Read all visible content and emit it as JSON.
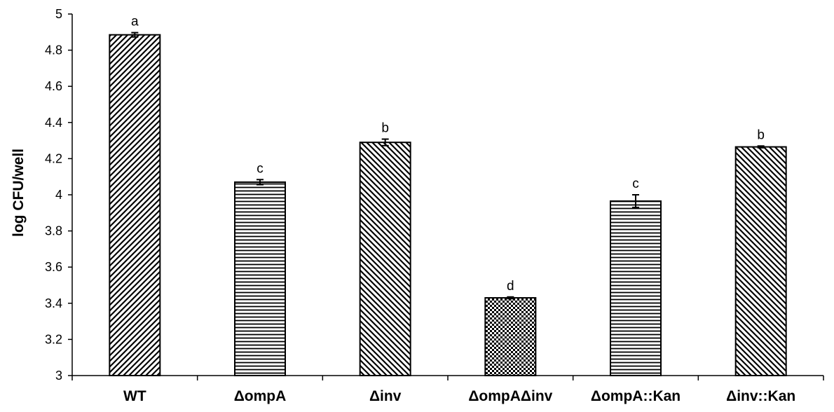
{
  "chart_data": {
    "type": "bar",
    "title": "",
    "xlabel": "",
    "ylabel": "log CFU/well",
    "ylim": [
      3,
      5
    ],
    "yticks": [
      "3",
      "3.2",
      "3.4",
      "3.6",
      "3.8",
      "4",
      "4.2",
      "4.4",
      "4.6",
      "4.8",
      "5"
    ],
    "grid": false,
    "legend": "none",
    "categories": [
      "WT",
      "ΔompA",
      "Δinv",
      "ΔompAΔinv",
      "ΔompA::Kan",
      "Δinv::Kan"
    ],
    "values": [
      4.885,
      4.07,
      4.29,
      3.43,
      3.965,
      4.265
    ],
    "errors": [
      0.012,
      0.014,
      0.018,
      0.005,
      0.035,
      0.005
    ],
    "significance": [
      "a",
      "c",
      "b",
      "d",
      "c",
      "b"
    ],
    "patterns": [
      "diag-up",
      "horizontal",
      "diag-down",
      "checker",
      "horizontal",
      "diag-down"
    ]
  }
}
